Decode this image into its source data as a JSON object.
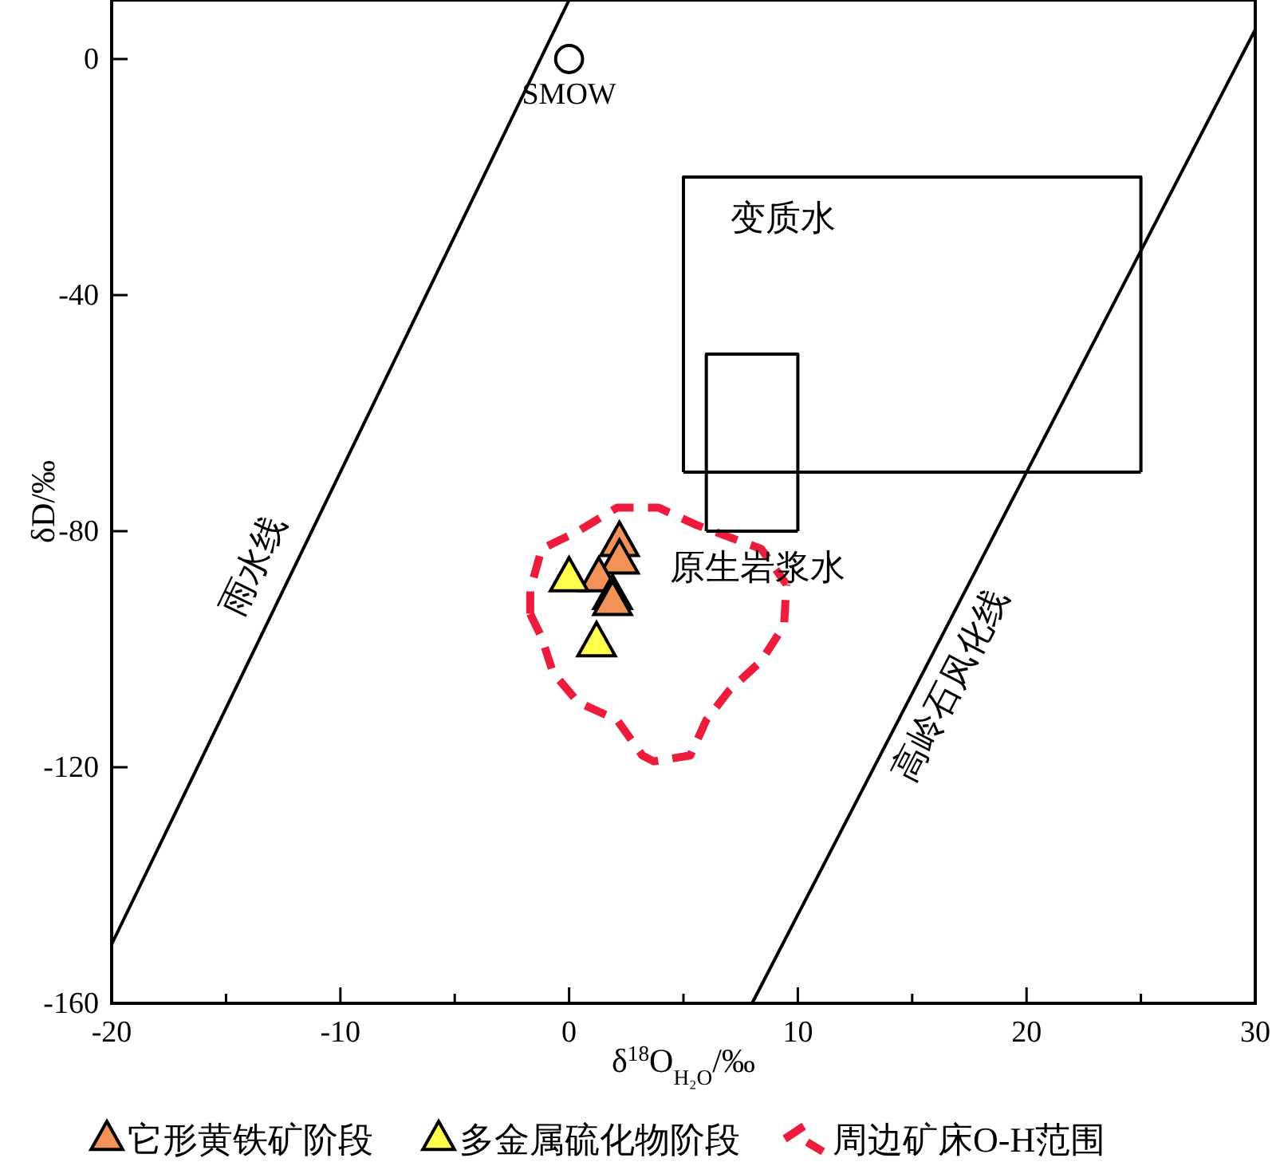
{
  "chart_data": {
    "type": "scatter",
    "xlabel": "δ$^{18}$O$_{H₂O}$/‰",
    "ylabel": "δD/‰",
    "xlim": [
      -20,
      30
    ],
    "ylim": [
      -160,
      10
    ],
    "xticks": [
      -20,
      {
        "value": -15,
        "label": null
      },
      -10,
      {
        "value": -5,
        "label": null
      },
      0,
      {
        "value": 5,
        "label": null
      },
      10,
      {
        "value": 15,
        "label": null
      },
      20,
      {
        "value": 25,
        "label": null
      },
      30
    ],
    "yticks": [
      -160,
      -120,
      -80,
      -40,
      0
    ],
    "grid": false,
    "legend": "bottom",
    "series": [
      {
        "name": "它形黄铁矿阶段",
        "color": "#f39257",
        "marker": "triangle",
        "x": [
          2.2,
          2.2,
          1.3,
          1.9,
          1.9
        ],
        "values": [
          -82,
          -85,
          -88,
          -91,
          -92
        ]
      },
      {
        "name": "多金属硫化物阶段",
        "color": "#ffff4c",
        "marker": "triangle",
        "x": [
          0,
          1.2
        ],
        "values": [
          -88,
          -99
        ]
      },
      {
        "type": "line",
        "name": "周边矿床O-H范围",
        "color": "#ee1c3c",
        "line_style": "dashed",
        "x": [
          -1.7,
          -1.7,
          -1.2,
          0.4,
          2.1,
          3.9,
          5.6,
          8.4,
          9.5
        ],
        "values": [
          -94,
          -90,
          -83,
          -80,
          -76,
          -76,
          -79,
          -83,
          -89
        ]
      },
      {
        "type": "line",
        "color": "#ee1c3c",
        "line_style": "dashed",
        "x": [
          -1.7,
          -1.2,
          -0.7,
          0.4,
          2.1,
          3.2,
          3.7,
          5.3,
          6.0,
          7.0,
          8.4,
          9.4,
          9.5
        ],
        "values": [
          -94,
          -98,
          -104,
          -109,
          -112,
          -118,
          -119,
          -118,
          -112,
          -107,
          -102,
          -96,
          -89
        ]
      },
      {
        "type": "line",
        "color": "#000000",
        "line_style": "solid",
        "x": [
          -20,
          0
        ],
        "values": [
          -150,
          10
        ]
      },
      {
        "type": "line",
        "color": "#000000",
        "line_style": "solid",
        "x": [
          8,
          30
        ],
        "values": [
          -160,
          5
        ]
      },
      {
        "type": "line",
        "color": "#000000",
        "line_style": "solid",
        "x": [
          5,
          5,
          25,
          25
        ],
        "values": [
          -70,
          -20,
          -20,
          -70
        ]
      },
      {
        "type": "line",
        "color": "#000000",
        "line_style": "solid",
        "x": [
          5,
          25
        ],
        "values": [
          -70,
          -70
        ]
      },
      {
        "type": "line",
        "color": "#000000",
        "line_style": "solid",
        "x": [
          6,
          6,
          10,
          10
        ],
        "values": [
          -80,
          -50,
          -50,
          -80
        ]
      },
      {
        "type": "line",
        "color": "#000000",
        "line_style": "solid",
        "x": [
          6,
          10
        ],
        "values": [
          -80,
          -80
        ]
      },
      {
        "color": "#000000",
        "marker": "circle",
        "x": [
          0
        ],
        "values": [
          0
        ]
      }
    ],
    "annotations": [
      {
        "text": "SMOW",
        "x": 0,
        "y": 0
      },
      "变质水",
      "原生岩浆水",
      "雨水线",
      "高岭石风化线"
    ]
  }
}
